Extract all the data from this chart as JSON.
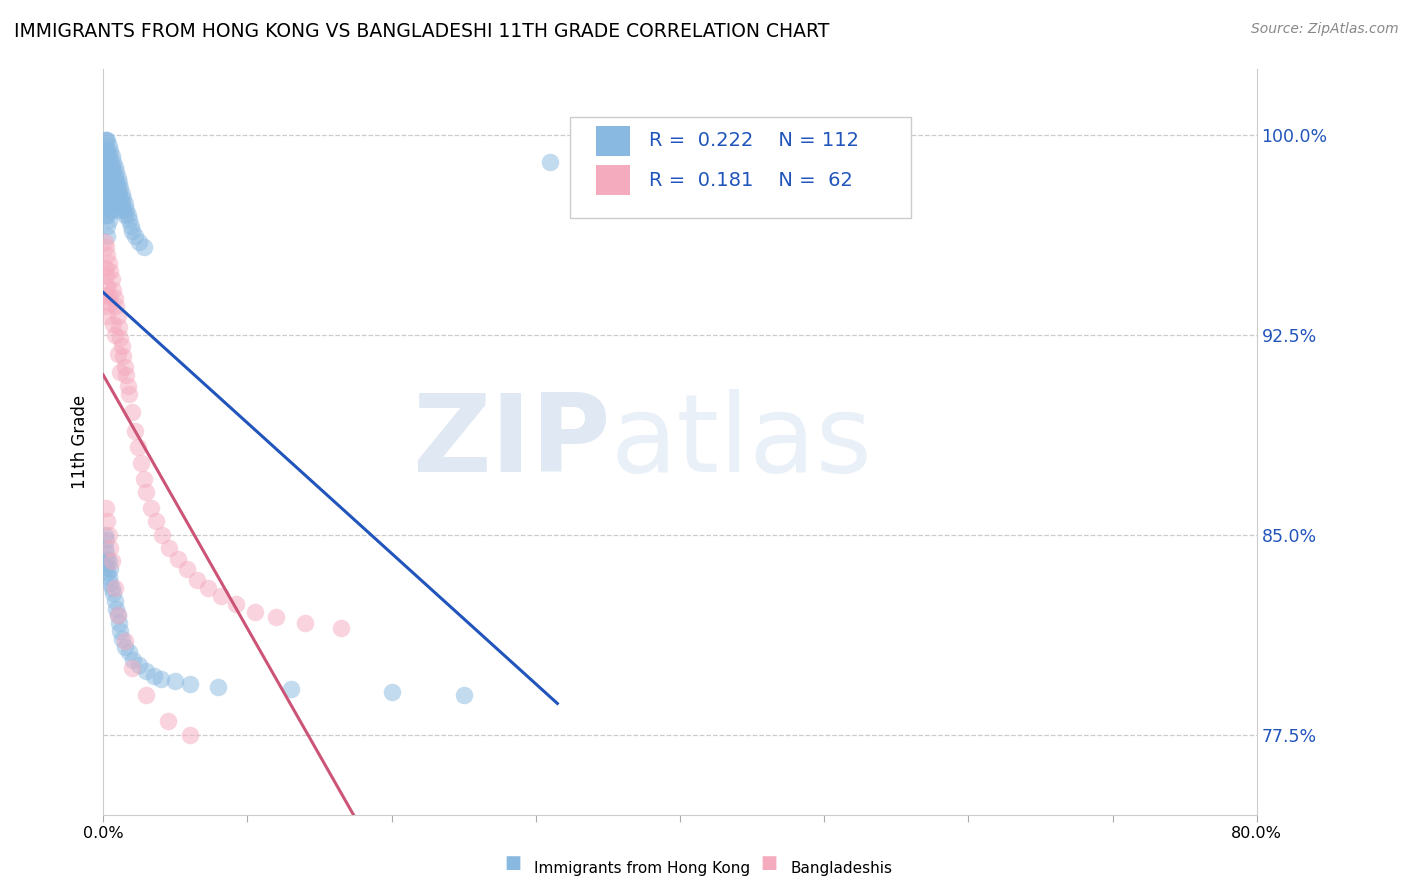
{
  "title": "IMMIGRANTS FROM HONG KONG VS BANGLADESHI 11TH GRADE CORRELATION CHART",
  "source": "Source: ZipAtlas.com",
  "ylabel": "11th Grade",
  "ytick_labels": [
    "77.5%",
    "85.0%",
    "92.5%",
    "100.0%"
  ],
  "ytick_values": [
    0.775,
    0.85,
    0.925,
    1.0
  ],
  "legend_blue_r": "0.222",
  "legend_blue_n": "112",
  "legend_pink_r": "0.181",
  "legend_pink_n": "62",
  "blue_color": "#89b8e0",
  "pink_color": "#f5abbe",
  "trend_blue_color": "#2255bb",
  "trend_pink_color": "#cc5577",
  "watermark_zip": "ZIP",
  "watermark_atlas": "atlas",
  "xlim": [
    0.0,
    0.8
  ],
  "ylim": [
    0.745,
    1.025
  ],
  "blue_scatter_x": [
    0.001,
    0.001,
    0.001,
    0.001,
    0.001,
    0.002,
    0.002,
    0.002,
    0.002,
    0.002,
    0.002,
    0.002,
    0.002,
    0.003,
    0.003,
    0.003,
    0.003,
    0.003,
    0.003,
    0.003,
    0.003,
    0.003,
    0.003,
    0.004,
    0.004,
    0.004,
    0.004,
    0.004,
    0.004,
    0.004,
    0.004,
    0.005,
    0.005,
    0.005,
    0.005,
    0.005,
    0.005,
    0.006,
    0.006,
    0.006,
    0.006,
    0.006,
    0.006,
    0.007,
    0.007,
    0.007,
    0.007,
    0.007,
    0.008,
    0.008,
    0.008,
    0.008,
    0.009,
    0.009,
    0.009,
    0.01,
    0.01,
    0.01,
    0.01,
    0.011,
    0.011,
    0.011,
    0.012,
    0.012,
    0.013,
    0.013,
    0.014,
    0.014,
    0.015,
    0.015,
    0.016,
    0.017,
    0.018,
    0.019,
    0.02,
    0.022,
    0.025,
    0.028,
    0.001,
    0.001,
    0.001,
    0.002,
    0.002,
    0.002,
    0.003,
    0.003,
    0.004,
    0.004,
    0.005,
    0.005,
    0.006,
    0.007,
    0.008,
    0.009,
    0.01,
    0.011,
    0.012,
    0.013,
    0.015,
    0.018,
    0.021,
    0.025,
    0.03,
    0.035,
    0.04,
    0.05,
    0.06,
    0.08,
    0.13,
    0.2,
    0.25,
    0.31
  ],
  "blue_scatter_y": [
    0.998,
    0.994,
    0.99,
    0.986,
    0.982,
    0.998,
    0.994,
    0.99,
    0.986,
    0.982,
    0.978,
    0.974,
    0.97,
    0.998,
    0.994,
    0.99,
    0.986,
    0.982,
    0.978,
    0.974,
    0.97,
    0.966,
    0.962,
    0.996,
    0.992,
    0.988,
    0.984,
    0.98,
    0.976,
    0.972,
    0.968,
    0.994,
    0.99,
    0.986,
    0.982,
    0.978,
    0.974,
    0.992,
    0.988,
    0.984,
    0.98,
    0.976,
    0.972,
    0.99,
    0.986,
    0.982,
    0.978,
    0.974,
    0.988,
    0.984,
    0.98,
    0.976,
    0.986,
    0.982,
    0.978,
    0.984,
    0.98,
    0.976,
    0.972,
    0.982,
    0.978,
    0.974,
    0.98,
    0.976,
    0.978,
    0.974,
    0.976,
    0.972,
    0.974,
    0.97,
    0.972,
    0.97,
    0.968,
    0.966,
    0.964,
    0.962,
    0.96,
    0.958,
    0.84,
    0.845,
    0.85,
    0.838,
    0.843,
    0.848,
    0.836,
    0.841,
    0.834,
    0.84,
    0.832,
    0.837,
    0.83,
    0.828,
    0.825,
    0.822,
    0.82,
    0.817,
    0.814,
    0.811,
    0.808,
    0.806,
    0.803,
    0.801,
    0.799,
    0.797,
    0.796,
    0.795,
    0.794,
    0.793,
    0.792,
    0.791,
    0.79,
    0.99
  ],
  "pink_scatter_x": [
    0.001,
    0.001,
    0.001,
    0.002,
    0.002,
    0.002,
    0.003,
    0.003,
    0.003,
    0.004,
    0.004,
    0.005,
    0.005,
    0.006,
    0.007,
    0.007,
    0.008,
    0.008,
    0.009,
    0.01,
    0.01,
    0.011,
    0.012,
    0.012,
    0.013,
    0.014,
    0.015,
    0.016,
    0.017,
    0.018,
    0.02,
    0.022,
    0.024,
    0.026,
    0.028,
    0.03,
    0.033,
    0.037,
    0.041,
    0.046,
    0.052,
    0.058,
    0.065,
    0.073,
    0.082,
    0.092,
    0.105,
    0.12,
    0.14,
    0.165,
    0.002,
    0.003,
    0.004,
    0.005,
    0.006,
    0.008,
    0.01,
    0.015,
    0.02,
    0.03,
    0.045,
    0.06
  ],
  "pink_scatter_y": [
    0.96,
    0.95,
    0.94,
    0.958,
    0.947,
    0.936,
    0.955,
    0.943,
    0.932,
    0.952,
    0.94,
    0.949,
    0.937,
    0.946,
    0.942,
    0.929,
    0.939,
    0.925,
    0.936,
    0.932,
    0.918,
    0.928,
    0.924,
    0.911,
    0.921,
    0.917,
    0.913,
    0.91,
    0.906,
    0.903,
    0.896,
    0.889,
    0.883,
    0.877,
    0.871,
    0.866,
    0.86,
    0.855,
    0.85,
    0.845,
    0.841,
    0.837,
    0.833,
    0.83,
    0.827,
    0.824,
    0.821,
    0.819,
    0.817,
    0.815,
    0.86,
    0.855,
    0.85,
    0.845,
    0.84,
    0.83,
    0.82,
    0.81,
    0.8,
    0.79,
    0.78,
    0.775
  ],
  "xtick_positions": [
    0.0,
    0.1,
    0.2,
    0.3,
    0.4,
    0.5,
    0.6,
    0.7,
    0.8
  ],
  "xtick_labels": [
    "0.0%",
    "",
    "",
    "",
    "",
    "",
    "",
    "",
    "80.0%"
  ]
}
